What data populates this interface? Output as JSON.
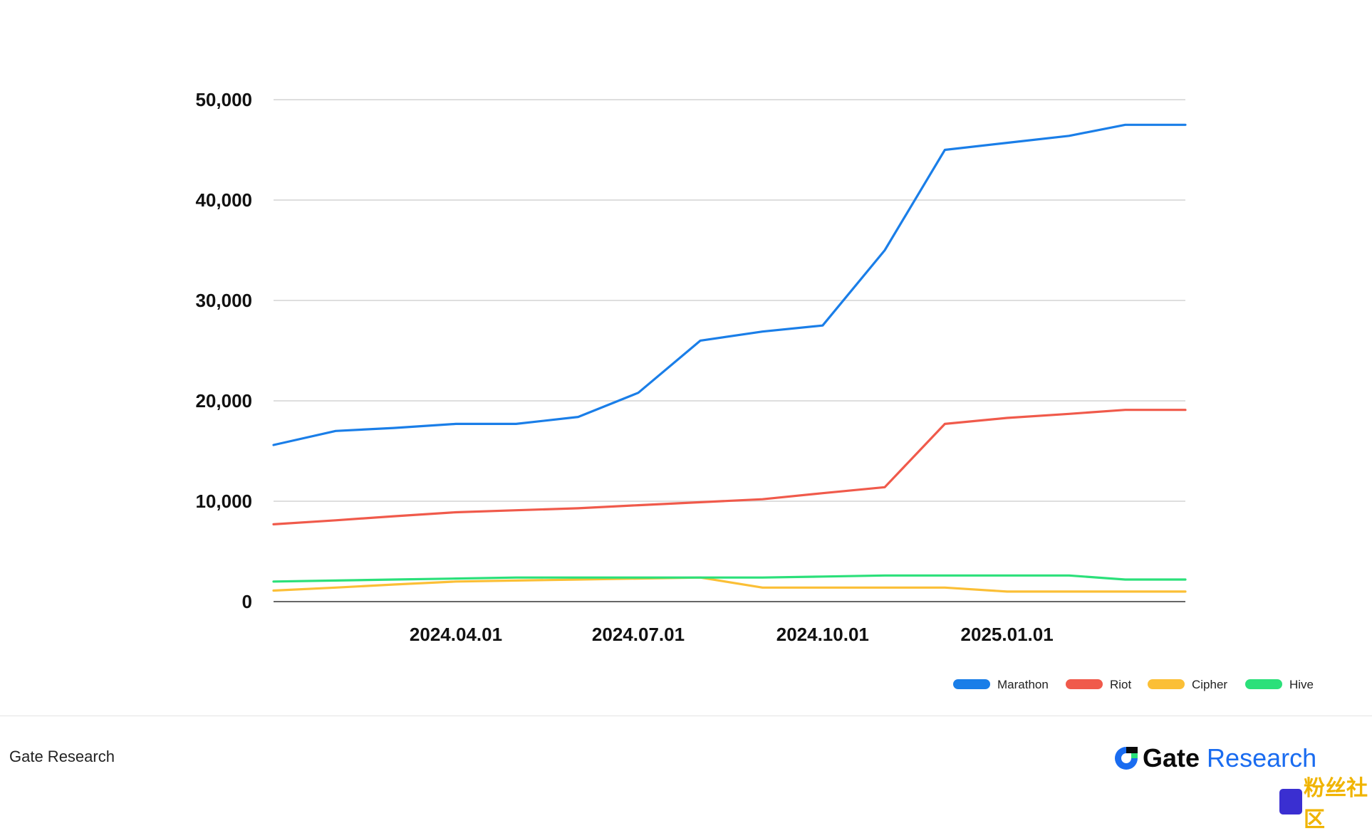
{
  "chart_data": {
    "type": "line",
    "title": "",
    "xlabel": "",
    "ylabel": "",
    "ylim": [
      0,
      50000
    ],
    "yticks": [
      0,
      10000,
      20000,
      30000,
      40000,
      50000
    ],
    "ytick_labels": [
      "0",
      "10,000",
      "20,000",
      "30,000",
      "40,000",
      "50,000"
    ],
    "xticks": [
      "2024.04.01",
      "2024.07.01",
      "2024.10.01",
      "2025.01.01"
    ],
    "x": [
      "2024.01.01",
      "2024.02.01",
      "2024.03.01",
      "2024.04.01",
      "2024.05.01",
      "2024.06.01",
      "2024.07.01",
      "2024.08.01",
      "2024.09.01",
      "2024.10.01",
      "2024.11.01",
      "2024.12.01",
      "2025.01.01",
      "2025.02.01",
      "2025.03.01",
      "2025.03.31"
    ],
    "grid": true,
    "legend_position": "bottom-right",
    "series": [
      {
        "name": "Marathon",
        "color": "#1a7ee8",
        "values": [
          15600,
          17000,
          17300,
          17700,
          17700,
          18400,
          20800,
          26000,
          26900,
          27500,
          35000,
          45000,
          45700,
          46400,
          47500,
          47500
        ]
      },
      {
        "name": "Riot",
        "color": "#f05a4b",
        "values": [
          7700,
          8100,
          8500,
          8900,
          9100,
          9300,
          9600,
          9900,
          10200,
          10800,
          11400,
          17700,
          18300,
          18700,
          19100,
          19100
        ]
      },
      {
        "name": "Cipher",
        "color": "#fbbf36",
        "values": [
          1100,
          1400,
          1700,
          2000,
          2100,
          2200,
          2300,
          2400,
          1400,
          1400,
          1400,
          1400,
          1000,
          1000,
          1000,
          1000
        ]
      },
      {
        "name": "Hive",
        "color": "#2be07a",
        "values": [
          2000,
          2100,
          2200,
          2300,
          2400,
          2400,
          2400,
          2400,
          2400,
          2500,
          2600,
          2600,
          2600,
          2600,
          2200,
          2200
        ]
      }
    ]
  },
  "footer": {
    "left_text": "Gate Research",
    "logo_word": "Gate",
    "logo_word2": "Research",
    "watermark_text": "粉丝社区"
  }
}
